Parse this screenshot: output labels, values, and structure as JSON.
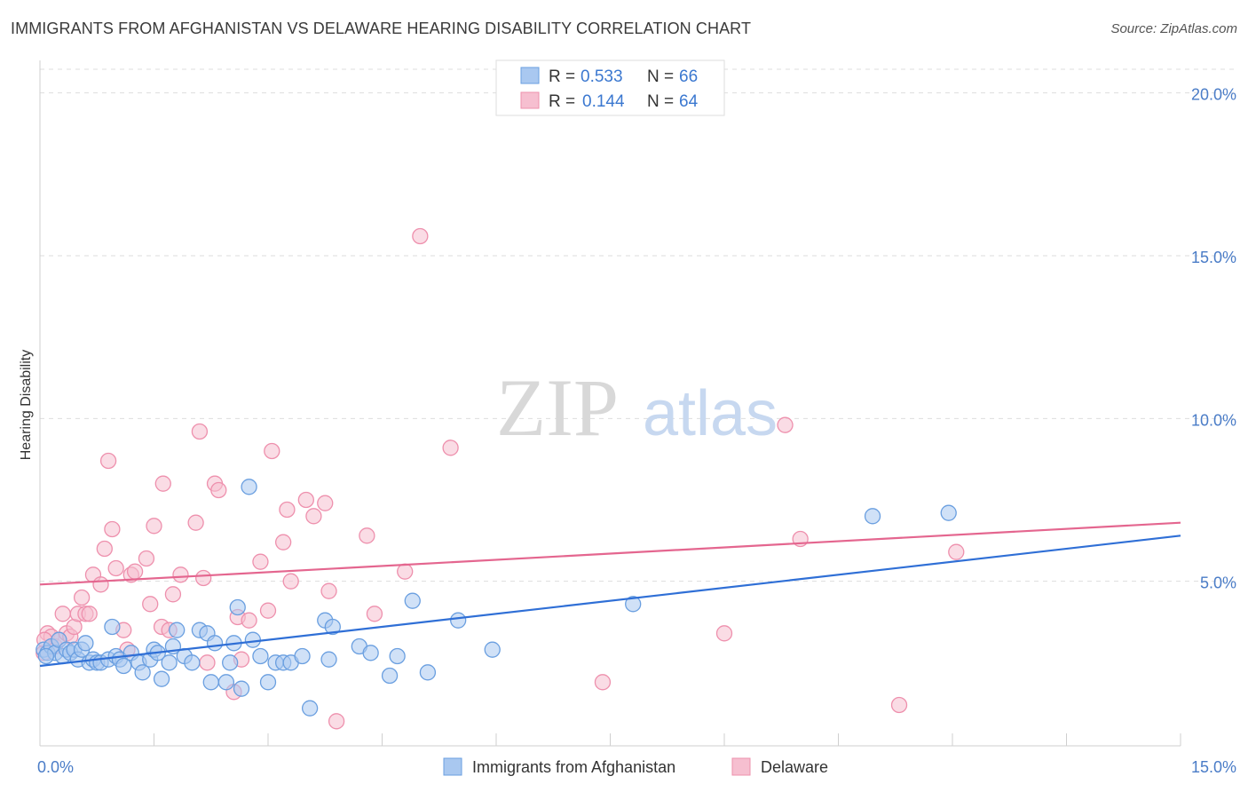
{
  "title": "IMMIGRANTS FROM AFGHANISTAN VS DELAWARE HEARING DISABILITY CORRELATION CHART",
  "source": "Source: ZipAtlas.com",
  "watermark": {
    "zip": "ZIP",
    "atlas": "atlas"
  },
  "colors": {
    "blue_fill": "#a9c8f0",
    "blue_stroke": "#6a9fe0",
    "blue_line": "#2f6fd6",
    "pink_fill": "#f6bfd0",
    "pink_stroke": "#ee90ad",
    "pink_line": "#e4668f",
    "grid": "#dddddd",
    "axis_text": "#4a7cc7"
  },
  "legend": {
    "rows": [
      {
        "r_label": "R =",
        "r_value": "0.533",
        "n_label": "N =",
        "n_value": "66"
      },
      {
        "r_label": "R =",
        "r_value": "0.144",
        "n_label": "N =",
        "n_value": "64"
      }
    ]
  },
  "chart_data": {
    "type": "scatter",
    "title": "IMMIGRANTS FROM AFGHANISTAN VS DELAWARE HEARING DISABILITY CORRELATION CHART",
    "xlabel": "",
    "ylabel": "Hearing Disability",
    "xlim": [
      0,
      15
    ],
    "ylim": [
      0,
      21
    ],
    "x_ticks": [
      {
        "value": 0,
        "label": "0.0%"
      },
      {
        "value": 15,
        "label": "15.0%"
      }
    ],
    "y_ticks": [
      {
        "value": 5,
        "label": "5.0%"
      },
      {
        "value": 10,
        "label": "10.0%"
      },
      {
        "value": 15,
        "label": "15.0%"
      },
      {
        "value": 20,
        "label": "20.0%"
      }
    ],
    "grid": true,
    "legend_position": "top-center",
    "series": [
      {
        "name": "Immigrants from Afghanistan",
        "R": 0.533,
        "N": 66,
        "trend": {
          "x": [
            0,
            15
          ],
          "y": [
            2.4,
            6.4
          ]
        },
        "points": [
          [
            0.05,
            2.9
          ],
          [
            0.1,
            2.8
          ],
          [
            0.15,
            3.0
          ],
          [
            0.2,
            2.8
          ],
          [
            0.25,
            3.2
          ],
          [
            0.3,
            2.7
          ],
          [
            0.35,
            2.9
          ],
          [
            0.4,
            2.8
          ],
          [
            0.45,
            2.9
          ],
          [
            0.5,
            2.6
          ],
          [
            0.55,
            2.9
          ],
          [
            0.6,
            3.1
          ],
          [
            0.65,
            2.5
          ],
          [
            0.7,
            2.6
          ],
          [
            0.75,
            2.5
          ],
          [
            0.8,
            2.5
          ],
          [
            0.9,
            2.6
          ],
          [
            0.95,
            3.6
          ],
          [
            1.0,
            2.7
          ],
          [
            1.05,
            2.6
          ],
          [
            1.1,
            2.4
          ],
          [
            1.2,
            2.8
          ],
          [
            1.3,
            2.5
          ],
          [
            1.35,
            2.2
          ],
          [
            1.45,
            2.6
          ],
          [
            1.5,
            2.9
          ],
          [
            1.55,
            2.8
          ],
          [
            1.6,
            2.0
          ],
          [
            1.7,
            2.5
          ],
          [
            1.75,
            3.0
          ],
          [
            1.8,
            3.5
          ],
          [
            1.9,
            2.7
          ],
          [
            2.0,
            2.5
          ],
          [
            2.1,
            3.5
          ],
          [
            2.2,
            3.4
          ],
          [
            2.25,
            1.9
          ],
          [
            2.3,
            3.1
          ],
          [
            2.45,
            1.9
          ],
          [
            2.5,
            2.5
          ],
          [
            2.55,
            3.1
          ],
          [
            2.6,
            4.2
          ],
          [
            2.65,
            1.7
          ],
          [
            2.75,
            7.9
          ],
          [
            2.8,
            3.2
          ],
          [
            2.9,
            2.7
          ],
          [
            3.0,
            1.9
          ],
          [
            3.1,
            2.5
          ],
          [
            3.2,
            2.5
          ],
          [
            3.3,
            2.5
          ],
          [
            3.45,
            2.7
          ],
          [
            3.55,
            1.1
          ],
          [
            3.75,
            3.8
          ],
          [
            3.8,
            2.6
          ],
          [
            3.85,
            3.6
          ],
          [
            4.2,
            3.0
          ],
          [
            4.35,
            2.8
          ],
          [
            4.6,
            2.1
          ],
          [
            4.7,
            2.7
          ],
          [
            4.9,
            4.4
          ],
          [
            5.1,
            2.2
          ],
          [
            5.5,
            3.8
          ],
          [
            5.95,
            2.9
          ],
          [
            7.8,
            4.3
          ],
          [
            10.95,
            7.0
          ],
          [
            11.95,
            7.1
          ],
          [
            0.08,
            2.7
          ]
        ]
      },
      {
        "name": "Delaware",
        "R": 0.144,
        "N": 64,
        "trend": {
          "x": [
            0,
            15
          ],
          "y": [
            4.9,
            6.8
          ]
        },
        "points": [
          [
            0.05,
            2.8
          ],
          [
            0.1,
            3.4
          ],
          [
            0.15,
            3.3
          ],
          [
            0.2,
            3.0
          ],
          [
            0.25,
            3.2
          ],
          [
            0.3,
            4.0
          ],
          [
            0.35,
            3.4
          ],
          [
            0.4,
            3.3
          ],
          [
            0.45,
            3.6
          ],
          [
            0.5,
            4.0
          ],
          [
            0.55,
            4.5
          ],
          [
            0.6,
            4.0
          ],
          [
            0.65,
            4.0
          ],
          [
            0.7,
            5.2
          ],
          [
            0.8,
            4.9
          ],
          [
            0.85,
            6.0
          ],
          [
            0.9,
            8.7
          ],
          [
            0.95,
            6.6
          ],
          [
            1.0,
            5.4
          ],
          [
            1.1,
            3.5
          ],
          [
            1.15,
            2.9
          ],
          [
            1.2,
            5.2
          ],
          [
            1.25,
            5.3
          ],
          [
            1.4,
            5.7
          ],
          [
            1.45,
            4.3
          ],
          [
            1.5,
            6.7
          ],
          [
            1.6,
            3.6
          ],
          [
            1.62,
            8.0
          ],
          [
            1.7,
            3.5
          ],
          [
            1.75,
            4.6
          ],
          [
            1.85,
            5.2
          ],
          [
            2.05,
            6.8
          ],
          [
            2.1,
            9.6
          ],
          [
            2.15,
            5.1
          ],
          [
            2.2,
            2.5
          ],
          [
            2.3,
            8.0
          ],
          [
            2.35,
            7.8
          ],
          [
            2.55,
            1.6
          ],
          [
            2.6,
            3.9
          ],
          [
            2.65,
            2.6
          ],
          [
            2.75,
            3.8
          ],
          [
            2.9,
            5.6
          ],
          [
            3.0,
            4.1
          ],
          [
            3.05,
            9.0
          ],
          [
            3.2,
            6.2
          ],
          [
            3.25,
            7.2
          ],
          [
            3.3,
            5.0
          ],
          [
            3.5,
            7.5
          ],
          [
            3.6,
            7.0
          ],
          [
            3.75,
            7.4
          ],
          [
            3.8,
            4.7
          ],
          [
            3.9,
            0.7
          ],
          [
            4.3,
            6.4
          ],
          [
            4.4,
            4.0
          ],
          [
            4.8,
            5.3
          ],
          [
            5.0,
            15.6
          ],
          [
            5.4,
            9.1
          ],
          [
            7.4,
            1.9
          ],
          [
            9.0,
            3.4
          ],
          [
            9.8,
            9.8
          ],
          [
            10.0,
            6.3
          ],
          [
            11.3,
            1.2
          ],
          [
            12.05,
            5.9
          ],
          [
            0.06,
            3.2
          ]
        ]
      }
    ]
  },
  "bottom_legend": [
    {
      "label": "Immigrants from Afghanistan"
    },
    {
      "label": "Delaware"
    }
  ]
}
